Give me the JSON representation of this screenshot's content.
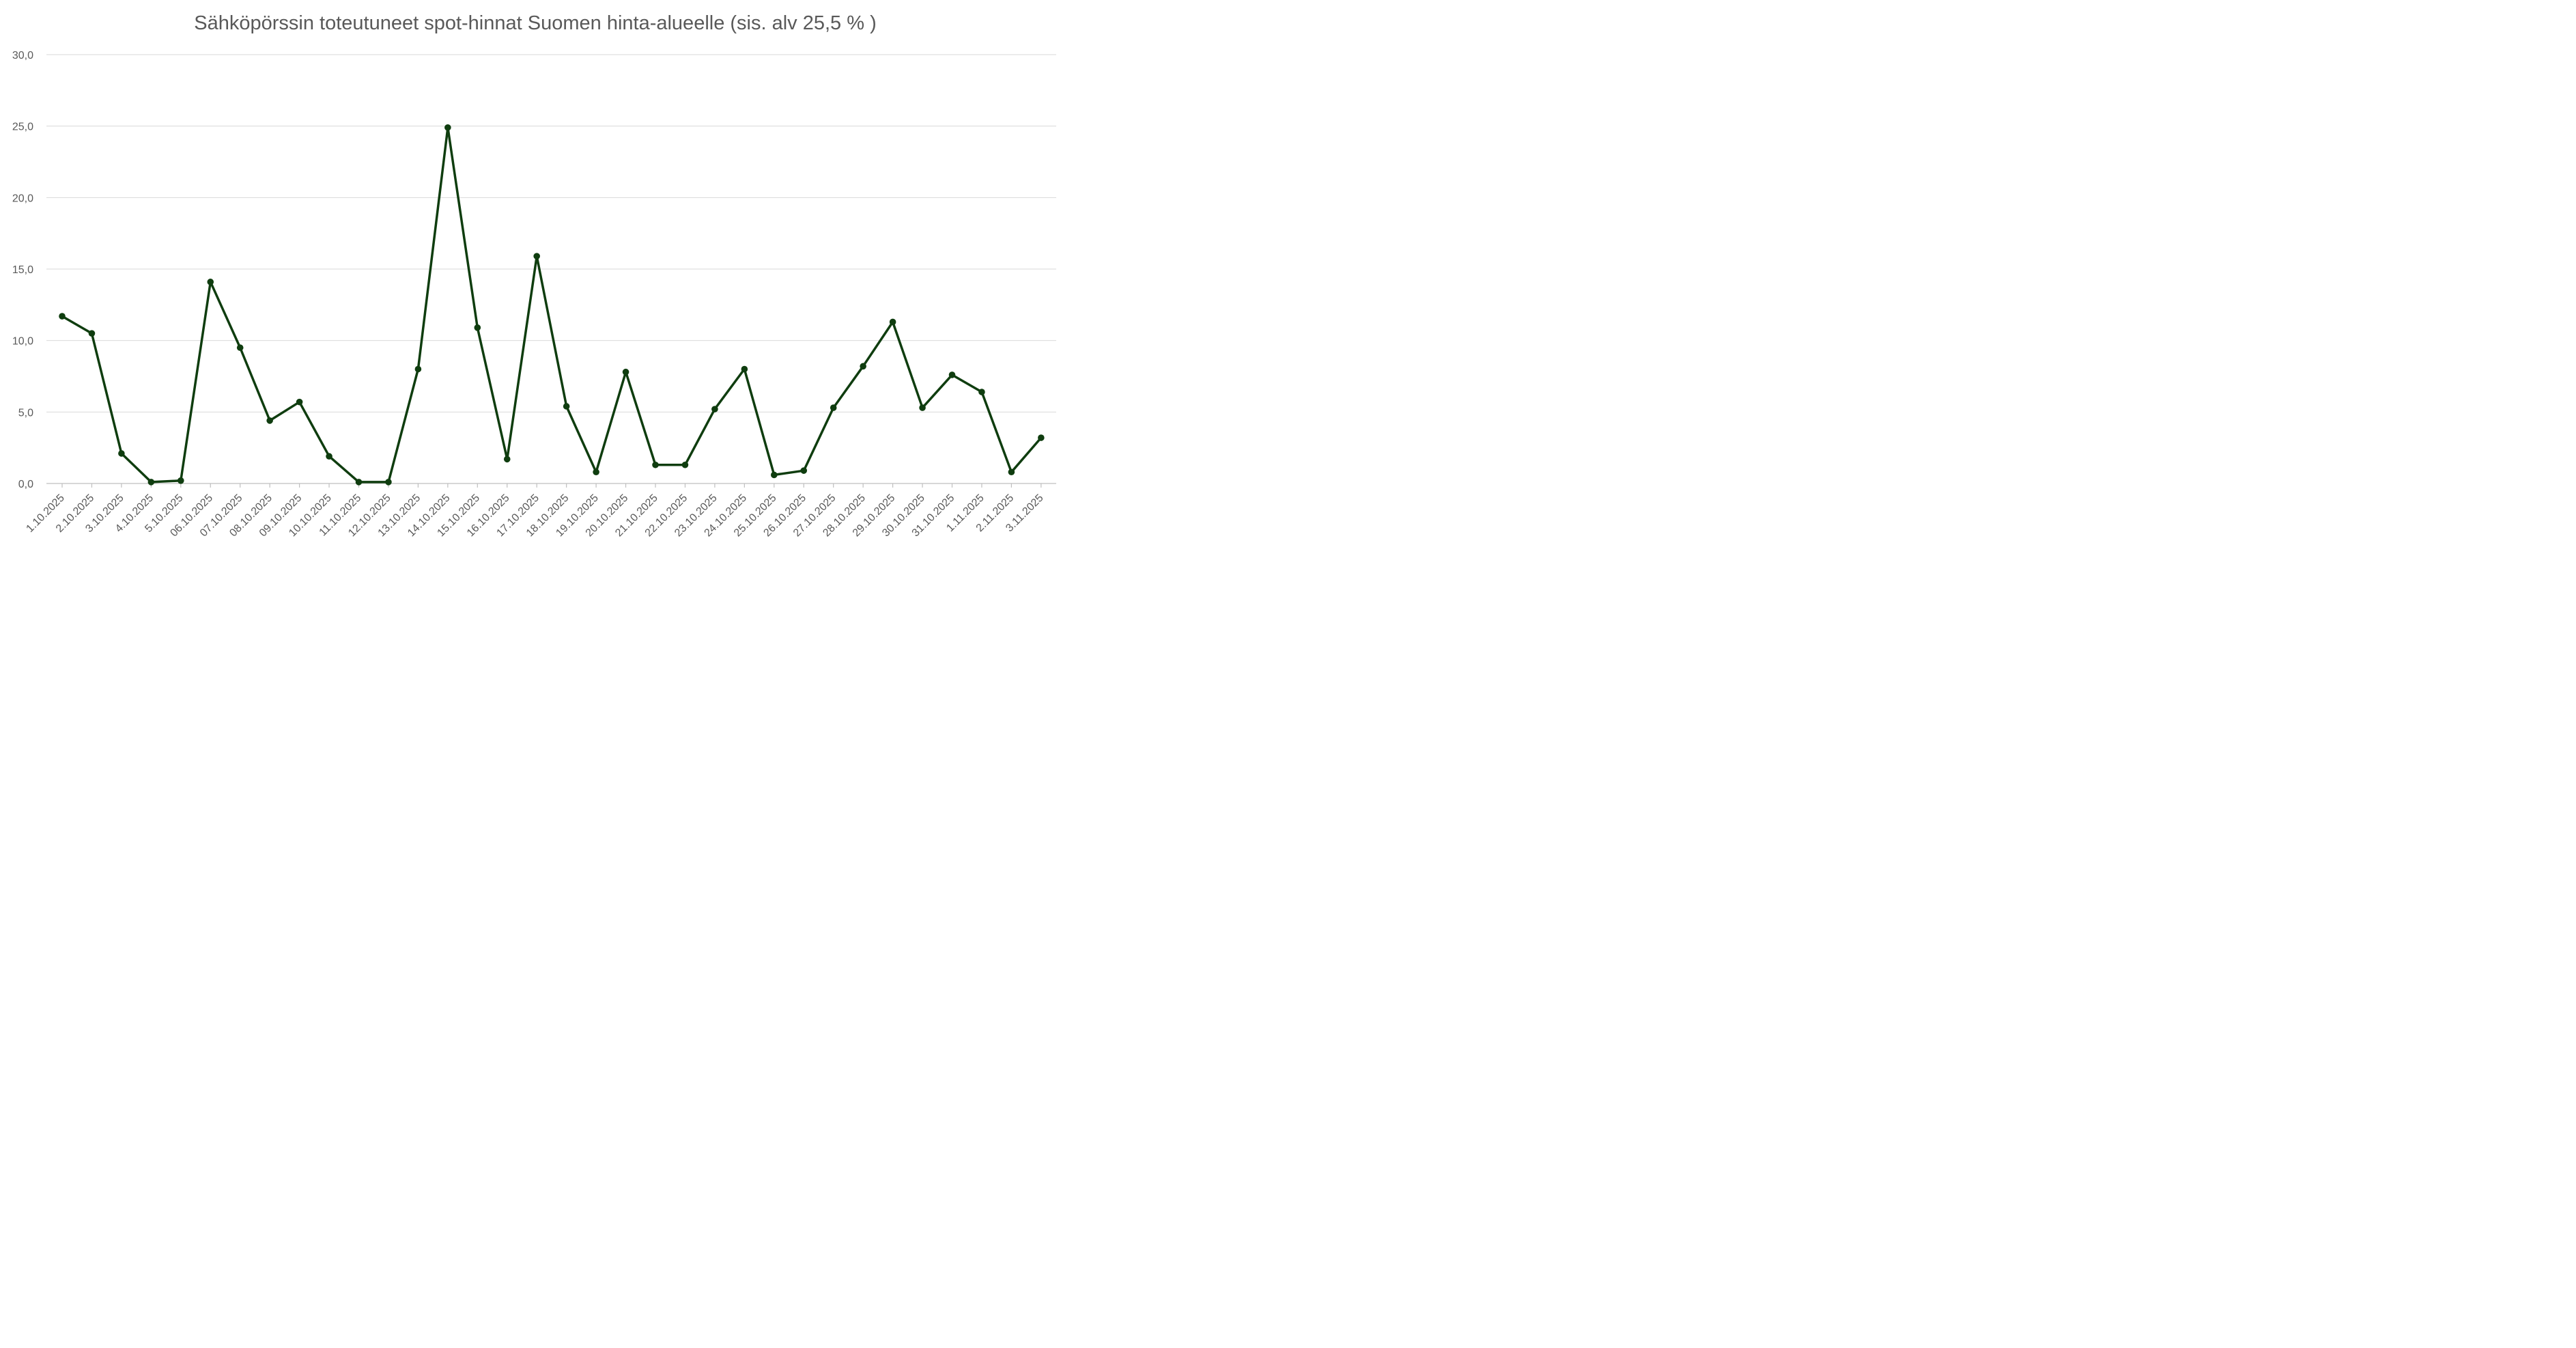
{
  "chart_data": {
    "type": "line",
    "title": "Sähköpörssin toteutuneet spot-hinnat Suomen hinta-alueelle (sis. alv 25,5 % )",
    "xlabel": "",
    "ylabel": "",
    "ylim": [
      0,
      30
    ],
    "y_ticks": [
      "0,0",
      "5,0",
      "10,0",
      "15,0",
      "20,0",
      "25,0",
      "30,0"
    ],
    "grid": true,
    "legend": "none",
    "color": "#0f3d0f",
    "categories": [
      "1.10.2025",
      "2.10.2025",
      "3.10.2025",
      "4.10.2025",
      "5.10.2025",
      "06.10.2025",
      "07.10.2025",
      "08.10.2025",
      "09.10.2025",
      "10.10.2025",
      "11.10.2025",
      "12.10.2025",
      "13.10.2025",
      "14.10.2025",
      "15.10.2025",
      "16.10.2025",
      "17.10.2025",
      "18.10.2025",
      "19.10.2025",
      "20.10.2025",
      "21.10.2025",
      "22.10.2025",
      "23.10.2025",
      "24.10.2025",
      "25.10.2025",
      "26.10.2025",
      "27.10.2025",
      "28.10.2025",
      "29.10.2025",
      "30.10.2025",
      "31.10.2025",
      "1.11.2025",
      "2.11.2025",
      "3.11.2025"
    ],
    "series": [
      {
        "values": [
          11.7,
          10.5,
          2.1,
          0.1,
          0.2,
          14.1,
          9.5,
          4.4,
          5.7,
          1.9,
          0.1,
          0.1,
          8.0,
          24.9,
          10.9,
          1.7,
          15.9,
          5.4,
          0.8,
          7.8,
          1.3,
          1.3,
          5.2,
          8.0,
          0.6,
          0.9,
          5.3,
          8.2,
          11.3,
          5.3,
          7.6,
          6.4,
          0.8,
          3.2
        ]
      }
    ]
  }
}
